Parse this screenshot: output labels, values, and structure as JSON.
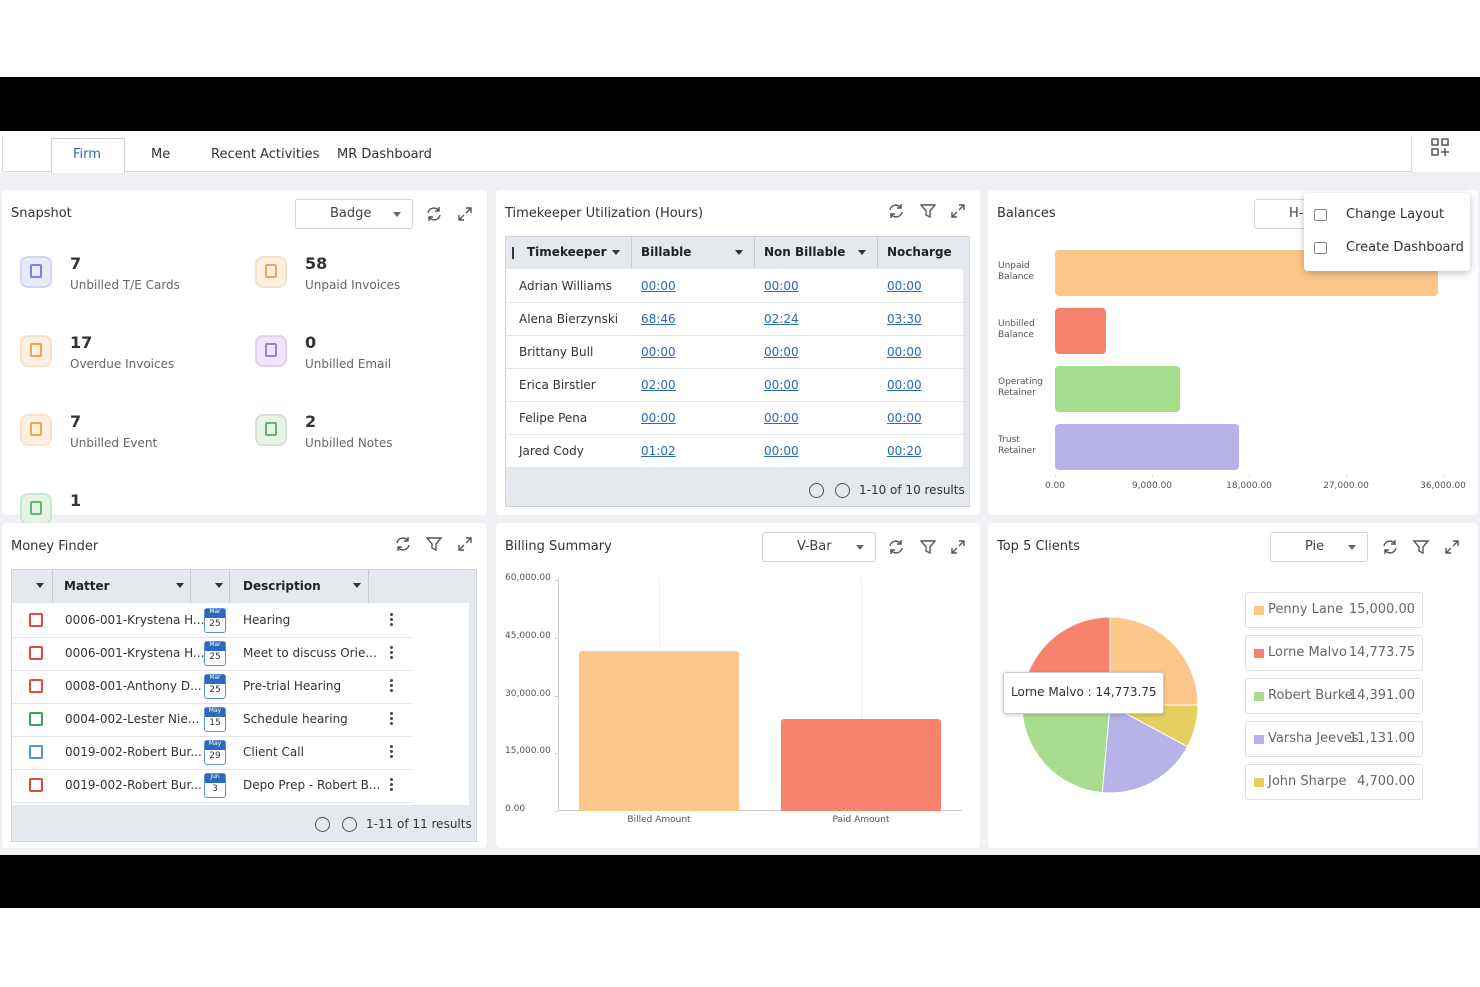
{
  "tabs": [
    "Firm",
    "Me",
    "Recent Activities",
    "MR Dashboard"
  ],
  "menu": [
    "Change Layout",
    "Create Dashboard"
  ],
  "snapshot": {
    "title": "Snapshot",
    "view": "Badge",
    "items": [
      {
        "count": "7",
        "label": "Unbilled T/E Cards"
      },
      {
        "count": "58",
        "label": "Unpaid Invoices"
      },
      {
        "count": "17",
        "label": "Overdue Invoices"
      },
      {
        "count": "0",
        "label": "Unbilled Email"
      },
      {
        "count": "7",
        "label": "Unbilled Event"
      },
      {
        "count": "2",
        "label": "Unbilled Notes"
      },
      {
        "count": "1"
      }
    ]
  },
  "timekeeper": {
    "title": "Timekeeper Utilization (Hours)",
    "columns": [
      "Timekeeper",
      "Billable",
      "Non Billable",
      "Nocharge"
    ],
    "rows": [
      [
        "Adrian Williams",
        "00:00",
        "00:00",
        "00:00"
      ],
      [
        "Alena Bierzynski",
        "68:46",
        "02:24",
        "03:30"
      ],
      [
        "Brittany Bull",
        "00:00",
        "00:00",
        "00:00"
      ],
      [
        "Erica Birstler",
        "02:00",
        "00:00",
        "00:00"
      ],
      [
        "Felipe Pena",
        "00:00",
        "00:00",
        "00:00"
      ],
      [
        "Jared Cody",
        "01:02",
        "00:00",
        "00:20"
      ]
    ],
    "pager": "1-10 of 10 results"
  },
  "balances": {
    "title": "Balances",
    "view": "H-Bar",
    "type": "bar",
    "orientation": "horizontal",
    "categories": [
      "Unpaid Balance",
      "Unbilled Balance",
      "Operating Retainer",
      "Trust Retainer"
    ],
    "values": [
      35500,
      4700,
      11600,
      17100
    ],
    "colors": [
      "#fbc88a",
      "#f8836c",
      "#a8dc8f",
      "#b7b3e8"
    ],
    "xlim": [
      0,
      36000
    ],
    "xticks": [
      {
        "value": 0,
        "label": "0.00"
      },
      {
        "value": 9000,
        "label": "9,000.00"
      },
      {
        "value": 18000,
        "label": "18,000.00"
      },
      {
        "value": 27000,
        "label": "27,000.00"
      },
      {
        "value": 36000,
        "label": "36,000.00"
      }
    ]
  },
  "money_finder": {
    "title": "Money Finder",
    "columns": [
      "Matter",
      "Description"
    ],
    "rows": [
      {
        "matter": "0006-001-Krystena H...",
        "month": "Mar",
        "day": "25",
        "description": "Hearing"
      },
      {
        "matter": "0006-001-Krystena H...",
        "month": "Mar",
        "day": "25",
        "description": "Meet to discuss Orie..."
      },
      {
        "matter": "0008-001-Anthony D...",
        "month": "Mar",
        "day": "25",
        "description": "Pre-trial Hearing"
      },
      {
        "matter": "0004-002-Lester Nie...",
        "month": "May",
        "day": "15",
        "description": "Schedule hearing"
      },
      {
        "matter": "0019-002-Robert Bur...",
        "month": "May",
        "day": "29",
        "description": "Client Call"
      },
      {
        "matter": "0019-002-Robert Bur...",
        "month": "Jun",
        "day": "3",
        "description": "Depo Prep - Robert B..."
      }
    ],
    "pager": "1-11 of 11 results"
  },
  "billing_summary": {
    "title": "Billing Summary",
    "view": "V-Bar",
    "type": "bar",
    "categories": [
      "Billed Amount",
      "Paid Amount"
    ],
    "values": [
      41500,
      24000
    ],
    "colors": [
      "#fbc88a",
      "#f8836c"
    ],
    "ylim": [
      0,
      60000
    ],
    "yticks": [
      {
        "value": 0,
        "label": "0.00"
      },
      {
        "value": 15000,
        "label": "15,000.00"
      },
      {
        "value": 30000,
        "label": "30,000.00"
      },
      {
        "value": 45000,
        "label": "45,000.00"
      },
      {
        "value": 60000,
        "label": "60,000.00"
      }
    ]
  },
  "top_clients": {
    "title": "Top 5 Clients",
    "view": "Pie",
    "type": "pie",
    "tooltip": "Lorne Malvo : 14,773.75",
    "categories": [
      "Penny Lane",
      "Lorne Malvo",
      "Robert Burke",
      "Varsha Jeeves",
      "John Sharpe"
    ],
    "values": [
      15000,
      14773.75,
      14391,
      11131,
      4700
    ],
    "value_labels": [
      "15,000.00",
      "14,773.75",
      "14,391.00",
      "11,131.00",
      "4,700.00"
    ],
    "colors": [
      "#fbc88a",
      "#f8836c",
      "#a8dc8f",
      "#b7b3e8",
      "#e5cf5f"
    ]
  }
}
